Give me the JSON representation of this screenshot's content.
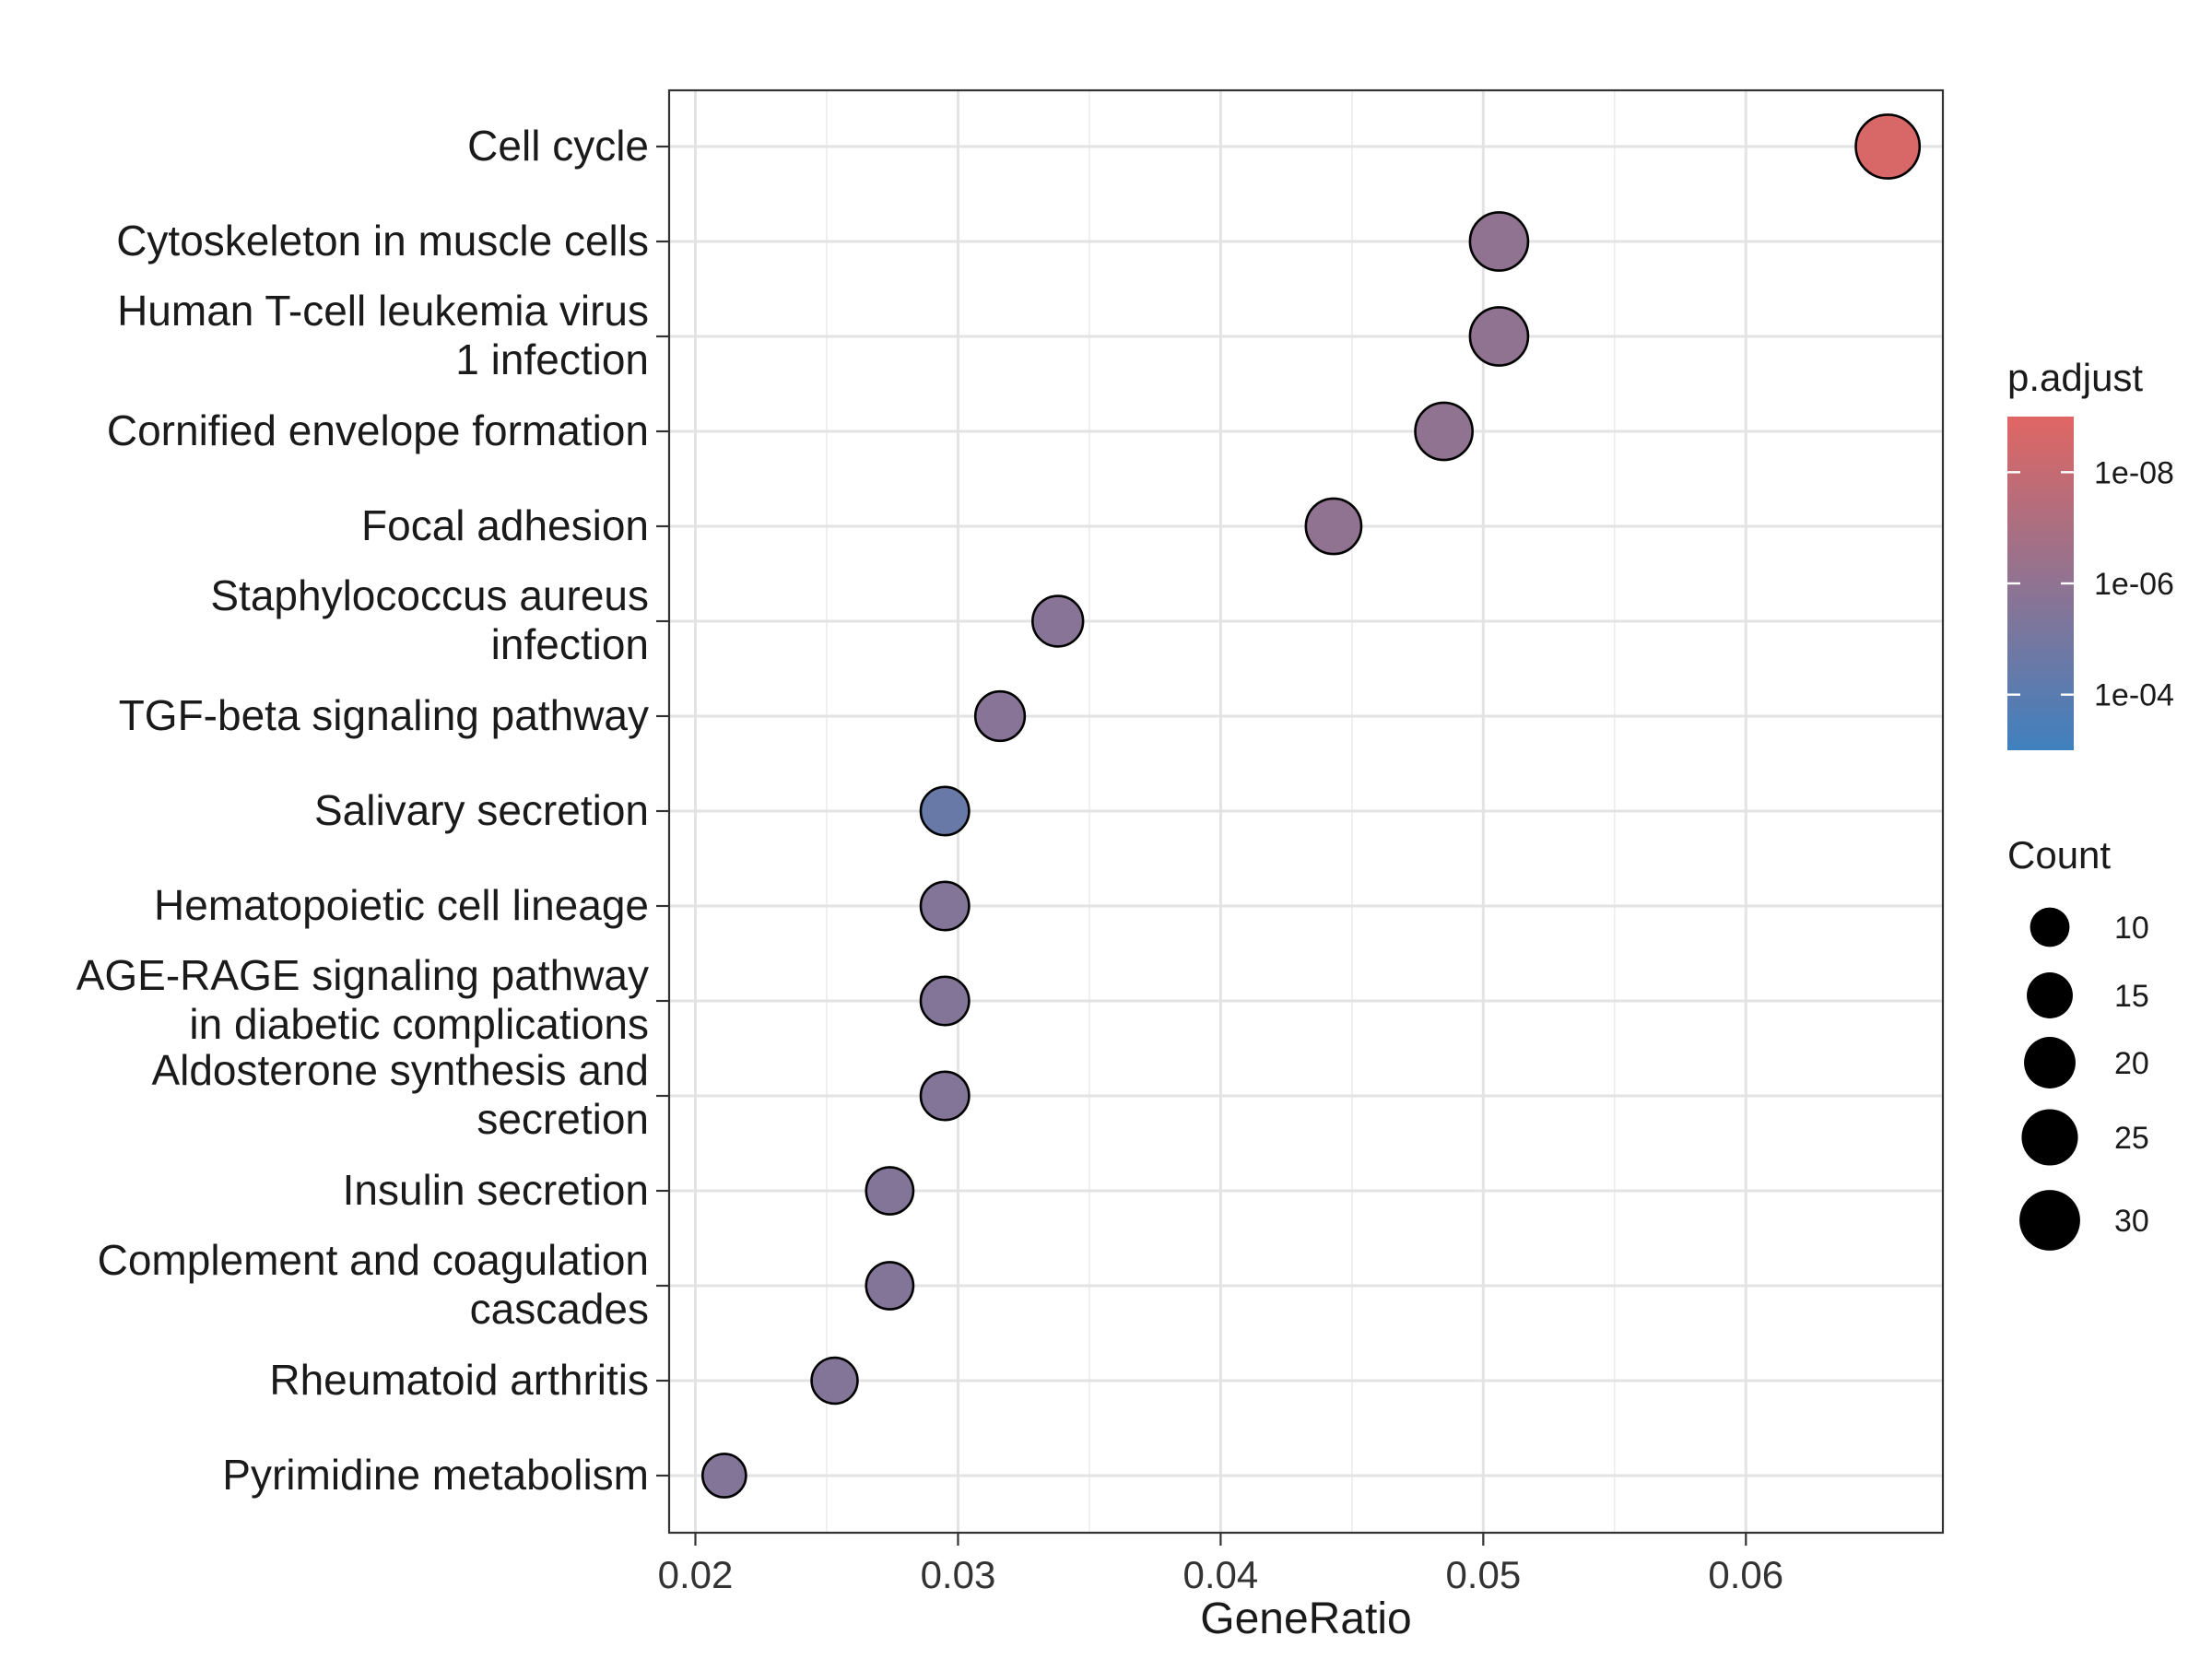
{
  "chart_data": {
    "type": "scatter",
    "xlabel": "GeneRatio",
    "xlim": [
      0.019,
      0.0675
    ],
    "x_ticks": [
      "0.02",
      "0.03",
      "0.04",
      "0.05",
      "0.06"
    ],
    "x_tick_values": [
      0.02,
      0.03,
      0.04,
      0.05,
      0.06
    ],
    "grid": true,
    "categories": [
      [
        "Cell cycle"
      ],
      [
        "Cytoskeleton in muscle cells"
      ],
      [
        "Human T-cell leukemia virus",
        "1 infection"
      ],
      [
        "Cornified envelope formation"
      ],
      [
        "Focal adhesion"
      ],
      [
        "Staphylococcus aureus",
        "infection"
      ],
      [
        "TGF-beta signaling pathway"
      ],
      [
        "Salivary secretion"
      ],
      [
        "Hematopoietic cell lineage"
      ],
      [
        "AGE-RAGE signaling pathway",
        "in diabetic complications"
      ],
      [
        "Aldosterone synthesis and",
        "secretion"
      ],
      [
        "Insulin secretion"
      ],
      [
        "Complement and coagulation",
        "cascades"
      ],
      [
        "Rheumatoid arthritis"
      ],
      [
        "Pyrimidine metabolism"
      ]
    ],
    "points": [
      {
        "gene_ratio": 0.0654,
        "count": 31,
        "p_adjust": 2e-09
      },
      {
        "gene_ratio": 0.0506,
        "count": 24,
        "p_adjust": 1e-06
      },
      {
        "gene_ratio": 0.0506,
        "count": 24,
        "p_adjust": 1e-06
      },
      {
        "gene_ratio": 0.0485,
        "count": 23,
        "p_adjust": 1e-06
      },
      {
        "gene_ratio": 0.0443,
        "count": 21,
        "p_adjust": 1e-06
      },
      {
        "gene_ratio": 0.0338,
        "count": 16,
        "p_adjust": 2e-06
      },
      {
        "gene_ratio": 0.0316,
        "count": 15,
        "p_adjust": 2e-06
      },
      {
        "gene_ratio": 0.0295,
        "count": 14,
        "p_adjust": 3e-05
      },
      {
        "gene_ratio": 0.0295,
        "count": 14,
        "p_adjust": 3e-06
      },
      {
        "gene_ratio": 0.0295,
        "count": 14,
        "p_adjust": 3e-06
      },
      {
        "gene_ratio": 0.0295,
        "count": 14,
        "p_adjust": 3e-06
      },
      {
        "gene_ratio": 0.0274,
        "count": 13,
        "p_adjust": 3e-06
      },
      {
        "gene_ratio": 0.0274,
        "count": 13,
        "p_adjust": 3e-06
      },
      {
        "gene_ratio": 0.0253,
        "count": 12,
        "p_adjust": 3e-06
      },
      {
        "gene_ratio": 0.0211,
        "count": 10,
        "p_adjust": 3e-06
      }
    ],
    "color_legend": {
      "title": "p.adjust",
      "labels": [
        "1e-08",
        "1e-06",
        "1e-04"
      ],
      "values": [
        1e-08,
        1e-06,
        0.0001
      ],
      "range": [
        1e-09,
        0.001
      ],
      "low_color": "#E06663",
      "high_color": "#3F80BF"
    },
    "size_legend": {
      "title": "Count",
      "labels": [
        "10",
        "15",
        "20",
        "25",
        "30"
      ],
      "values": [
        10,
        15,
        20,
        25,
        30
      ]
    },
    "point_stroke_color": "#000000",
    "legend_position": "right"
  }
}
